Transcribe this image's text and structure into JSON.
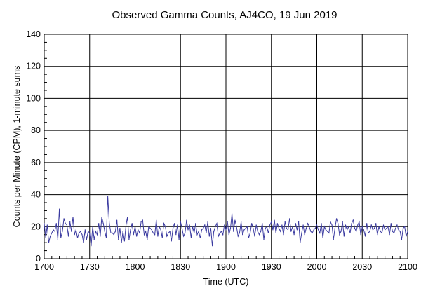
{
  "chart_data": {
    "type": "line",
    "title": "Observed Gamma Counts, AJ4CO, 19 Jun 2019",
    "xlabel": "Time (UTC)",
    "ylabel": "Counts per Minute (CPM), 1-minute sums",
    "ylim": [
      0,
      140
    ],
    "y_ticks": [
      0,
      20,
      40,
      60,
      80,
      100,
      120,
      140
    ],
    "x_tick_labels": [
      "1700",
      "1730",
      "1800",
      "1830",
      "1900",
      "1930",
      "2000",
      "2030",
      "2100"
    ],
    "xlim_minutes": [
      0,
      240
    ],
    "grid": true,
    "colors": {
      "series": "#3a3aa0",
      "grid": "#000000"
    },
    "series": [
      {
        "x_minutes_from_1700": [
          0,
          1,
          2,
          3,
          4,
          5,
          6,
          7,
          8,
          9,
          10,
          11,
          12,
          13,
          14,
          15,
          16,
          17,
          18,
          19,
          20,
          21,
          22,
          23,
          24,
          25,
          26,
          27,
          28,
          29,
          30,
          31,
          32,
          33,
          34,
          35,
          36,
          37,
          38,
          39,
          40,
          41,
          42,
          43,
          44,
          45,
          46,
          47,
          48,
          49,
          50,
          51,
          52,
          53,
          54,
          55,
          56,
          57,
          58,
          59,
          60,
          61,
          62,
          63,
          64,
          65,
          66,
          67,
          68,
          69,
          70,
          71,
          72,
          73,
          74,
          75,
          76,
          77,
          78,
          79,
          80,
          81,
          82,
          83,
          84,
          85,
          86,
          87,
          88,
          89,
          90,
          91,
          92,
          93,
          94,
          95,
          96,
          97,
          98,
          99,
          100,
          101,
          102,
          103,
          104,
          105,
          106,
          107,
          108,
          109,
          110,
          111,
          112,
          113,
          114,
          115,
          116,
          117,
          118,
          119,
          120,
          121,
          122,
          123,
          124,
          125,
          126,
          127,
          128,
          129,
          130,
          131,
          132,
          133,
          134,
          135,
          136,
          137,
          138,
          139,
          140,
          141,
          142,
          143,
          144,
          145,
          146,
          147,
          148,
          149,
          150,
          151,
          152,
          153,
          154,
          155,
          156,
          157,
          158,
          159,
          160,
          161,
          162,
          163,
          164,
          165,
          166,
          167,
          168,
          169,
          170,
          171,
          172,
          173,
          174,
          175,
          176,
          177,
          178,
          179,
          180,
          181,
          182,
          183,
          184,
          185,
          186,
          187,
          188,
          189,
          190,
          191,
          192,
          193,
          194,
          195,
          196,
          197,
          198,
          199,
          200,
          201,
          202,
          203,
          204,
          205,
          206,
          207,
          208,
          209,
          210,
          211,
          212,
          213,
          214,
          215,
          216,
          217,
          218,
          219,
          220,
          221,
          222,
          223,
          224,
          225,
          226,
          227,
          228,
          229,
          230,
          231,
          232,
          233,
          234,
          235,
          236,
          237,
          238,
          239,
          240
        ],
        "y": [
          22,
          13,
          21,
          10,
          14,
          16,
          18,
          17,
          22,
          12,
          31,
          13,
          17,
          25,
          22,
          21,
          14,
          23,
          17,
          26,
          15,
          18,
          13,
          16,
          17,
          15,
          10,
          18,
          12,
          17,
          16,
          8,
          20,
          12,
          17,
          15,
          22,
          14,
          26,
          22,
          17,
          13,
          39,
          22,
          16,
          16,
          15,
          17,
          24,
          12,
          19,
          10,
          17,
          11,
          21,
          26,
          12,
          18,
          22,
          15,
          20,
          14,
          18,
          16,
          23,
          24,
          15,
          17,
          12,
          20,
          19,
          18,
          16,
          15,
          24,
          14,
          20,
          18,
          13,
          22,
          20,
          14,
          16,
          17,
          11,
          19,
          22,
          15,
          21,
          12,
          23,
          19,
          14,
          16,
          24,
          18,
          21,
          13,
          20,
          16,
          22,
          15,
          17,
          13,
          18,
          19,
          21,
          16,
          23,
          14,
          19,
          8,
          17,
          20,
          22,
          14,
          16,
          17,
          15,
          21,
          18,
          23,
          15,
          19,
          28,
          17,
          24,
          20,
          14,
          16,
          23,
          15,
          18,
          19,
          20,
          13,
          16,
          22,
          19,
          14,
          21,
          17,
          15,
          17,
          22,
          12,
          19,
          20,
          16,
          21,
          23,
          18,
          24,
          16,
          22,
          19,
          17,
          21,
          15,
          23,
          19,
          18,
          25,
          17,
          20,
          15,
          22,
          18,
          23,
          10,
          16,
          21,
          15,
          19,
          22,
          20,
          17,
          16,
          18,
          19,
          21,
          18,
          16,
          22,
          13,
          20,
          18,
          17,
          16,
          23,
          21,
          12,
          19,
          25,
          22,
          15,
          17,
          23,
          14,
          21,
          18,
          20,
          16,
          22,
          24,
          19,
          17,
          21,
          23,
          15,
          20,
          18,
          14,
          22,
          16,
          17,
          21,
          18,
          19,
          22,
          15,
          20,
          17,
          16,
          21,
          18,
          19,
          20,
          15,
          22,
          17,
          16,
          19,
          21,
          18,
          17,
          12,
          19,
          20,
          14,
          17
        ]
      }
    ]
  }
}
